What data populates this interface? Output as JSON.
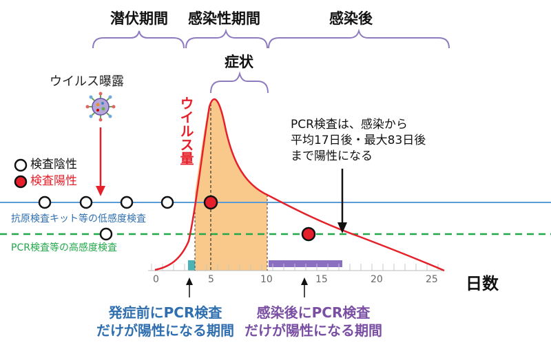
{
  "phases": {
    "incubation": "潜伏期間",
    "infectious": "感染性期間",
    "post_infection": "感染後",
    "symptoms": "症状"
  },
  "exposure_label": "ウイルス曝露",
  "virus_load_label": "ウイルス量",
  "legend": {
    "negative": "検査陰性",
    "positive": "検査陽性"
  },
  "tests": {
    "antigen": "抗原検査キット等の低感度検査",
    "pcr": "PCR検査等の高感度検査"
  },
  "pcr_note": "PCR検査は、感染から\n平均17日後・最大83日後\nまで陽性になる",
  "axis": {
    "label": "日数",
    "ticks": [
      "0",
      "5",
      "10",
      "15",
      "20",
      "25"
    ]
  },
  "captions": {
    "pre_symptom": "発症前にPCR検査\nだけが陽性になる期間",
    "post_infection": "感染後にPCR検査\nだけが陽性になる期間"
  },
  "colors": {
    "curve": "#e5202a",
    "shade": "#f8c98a",
    "antigen_line": "#5b9bd5",
    "pcr_line": "#22a84a",
    "bracket": "#8e7bbf",
    "teal_band": "#4bb3b3",
    "purple_band": "#8a6fc2",
    "positive": "#e5202a",
    "negative": "#ffffff"
  },
  "icons": [
    "virus-icon",
    "arrow-down-icon",
    "arrow-up-icon"
  ]
}
